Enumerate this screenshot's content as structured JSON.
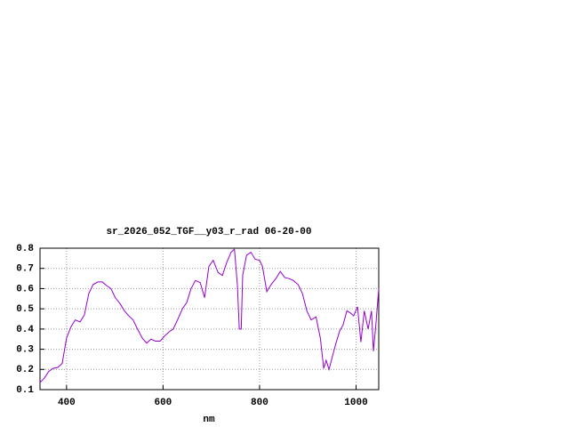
{
  "chart_data": {
    "type": "line",
    "title": "sr_2026_052_TGF__y03_r_rad 06-20-00",
    "x_label": "nm",
    "xlim": [
      345,
      1047
    ],
    "xticks": [
      400,
      600,
      800,
      1000
    ],
    "ylim": [
      0.1,
      0.8
    ],
    "yticks": [
      0.1,
      0.2,
      0.3,
      0.4,
      0.5,
      0.6,
      0.7,
      0.8
    ],
    "grid": true,
    "series": [
      {
        "color": "#9400d3",
        "x": [
          345,
          354,
          363,
          372,
          382,
          391,
          400,
          409,
          418,
          428,
          437,
          446,
          455,
          465,
          474,
          483,
          492,
          501,
          511,
          520,
          529,
          538,
          547,
          557,
          566,
          575,
          584,
          594,
          603,
          612,
          621,
          630,
          640,
          649,
          658,
          667,
          677,
          686,
          695,
          704,
          714,
          723,
          732,
          741,
          748,
          754,
          758,
          762,
          765,
          773,
          782,
          791,
          800,
          806,
          815,
          824,
          834,
          843,
          852,
          861,
          870,
          880,
          889,
          898,
          907,
          917,
          926,
          933,
          938,
          944,
          951,
          959,
          966,
          973,
          981,
          988,
          995,
          1003,
          1010,
          1017,
          1025,
          1032,
          1036,
          1041,
          1047
        ],
        "values": [
          0.135,
          0.157,
          0.19,
          0.205,
          0.21,
          0.23,
          0.355,
          0.41,
          0.445,
          0.435,
          0.47,
          0.575,
          0.62,
          0.633,
          0.633,
          0.615,
          0.6,
          0.555,
          0.525,
          0.49,
          0.465,
          0.445,
          0.4,
          0.355,
          0.33,
          0.35,
          0.34,
          0.34,
          0.365,
          0.385,
          0.4,
          0.445,
          0.5,
          0.53,
          0.6,
          0.64,
          0.63,
          0.555,
          0.71,
          0.74,
          0.68,
          0.665,
          0.73,
          0.78,
          0.795,
          0.62,
          0.4,
          0.4,
          0.665,
          0.765,
          0.78,
          0.745,
          0.74,
          0.71,
          0.585,
          0.62,
          0.65,
          0.685,
          0.655,
          0.65,
          0.64,
          0.62,
          0.575,
          0.49,
          0.445,
          0.46,
          0.355,
          0.205,
          0.245,
          0.2,
          0.265,
          0.335,
          0.39,
          0.42,
          0.49,
          0.48,
          0.465,
          0.51,
          0.335,
          0.49,
          0.4,
          0.49,
          0.29,
          0.42,
          0.6
        ]
      }
    ]
  }
}
